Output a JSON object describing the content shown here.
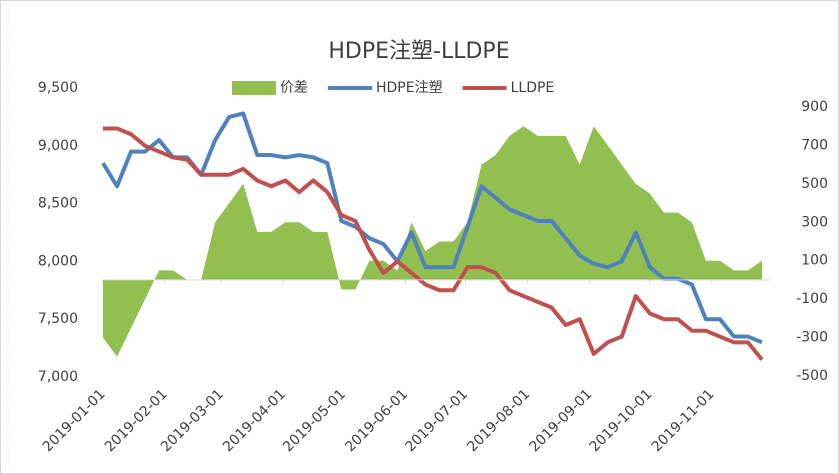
{
  "chart_data": {
    "type": "line",
    "title": "HDPE注塑-LLDPE",
    "x": [
      "2019-01-01",
      "2019-01-08",
      "2019-01-15",
      "2019-01-22",
      "2019-01-29",
      "2019-02-05",
      "2019-02-12",
      "2019-02-19",
      "2019-02-26",
      "2019-03-05",
      "2019-03-12",
      "2019-03-19",
      "2019-03-26",
      "2019-04-02",
      "2019-04-09",
      "2019-04-16",
      "2019-04-23",
      "2019-04-30",
      "2019-05-07",
      "2019-05-14",
      "2019-05-21",
      "2019-05-28",
      "2019-06-04",
      "2019-06-11",
      "2019-06-18",
      "2019-06-25",
      "2019-07-02",
      "2019-07-09",
      "2019-07-16",
      "2019-07-23",
      "2019-07-30",
      "2019-08-06",
      "2019-08-13",
      "2019-08-20",
      "2019-08-27",
      "2019-09-03",
      "2019-09-10",
      "2019-09-17",
      "2019-09-24",
      "2019-10-01",
      "2019-10-08",
      "2019-10-15",
      "2019-10-22",
      "2019-10-29",
      "2019-11-05",
      "2019-11-12",
      "2019-11-19",
      "2019-11-26"
    ],
    "series": [
      {
        "name": "价差",
        "type": "area",
        "axis": "y2",
        "color": "#92c050",
        "values": [
          -300,
          -400,
          -250,
          -100,
          50,
          50,
          0,
          0,
          300,
          400,
          500,
          250,
          250,
          300,
          300,
          250,
          250,
          -50,
          -50,
          100,
          100,
          50,
          300,
          150,
          200,
          200,
          300,
          600,
          650,
          750,
          800,
          750,
          750,
          750,
          600,
          800,
          700,
          600,
          500,
          450,
          350,
          350,
          300,
          100,
          100,
          50,
          50,
          100
        ]
      },
      {
        "name": "HDPE注塑",
        "color": "#4f81bd",
        "values": [
          8850,
          8650,
          8950,
          8950,
          9050,
          8900,
          8900,
          8750,
          9050,
          9250,
          9280,
          8920,
          8920,
          8900,
          8920,
          8900,
          8850,
          8350,
          8300,
          8200,
          8150,
          8000,
          8250,
          7950,
          7950,
          7950,
          8300,
          8650,
          8550,
          8450,
          8400,
          8350,
          8350,
          8200,
          8050,
          7980,
          7950,
          8000,
          8250,
          7950,
          7850,
          7850,
          7800,
          7500,
          7500,
          7350,
          7350,
          7300
        ]
      },
      {
        "name": "LLDPE",
        "color": "#c0504d",
        "values": [
          9150,
          9150,
          9100,
          9000,
          8950,
          8900,
          8880,
          8750,
          8750,
          8750,
          8800,
          8700,
          8650,
          8700,
          8600,
          8700,
          8600,
          8400,
          8350,
          8100,
          7900,
          8000,
          7900,
          7800,
          7750,
          7750,
          7950,
          7950,
          7900,
          7750,
          7700,
          7650,
          7600,
          7450,
          7500,
          7200,
          7300,
          7350,
          7700,
          7550,
          7500,
          7500,
          7400,
          7400,
          7350,
          7300,
          7300,
          7150
        ]
      }
    ],
    "xlim": [
      "2019-01-01",
      "2019-11-30"
    ],
    "xticks": [
      "2019-01-01",
      "2019-02-01",
      "2019-03-01",
      "2019-04-01",
      "2019-05-01",
      "2019-06-01",
      "2019-07-01",
      "2019-08-01",
      "2019-09-01",
      "2019-10-01",
      "2019-11-01"
    ],
    "ylim": [
      7000,
      9500
    ],
    "yticks": [
      {
        "value": 7000,
        "label": "7,000"
      },
      {
        "value": 7500,
        "label": "7,500"
      },
      {
        "value": 8000,
        "label": "8,000"
      },
      {
        "value": 8500,
        "label": "8,500"
      },
      {
        "value": 9000,
        "label": "9,000"
      },
      {
        "value": 9500,
        "label": "9,500"
      }
    ],
    "y2lim": [
      -500,
      900
    ],
    "y2ticks": [
      -500,
      -300,
      -100,
      100,
      300,
      500,
      700,
      900
    ],
    "legend": "top"
  }
}
